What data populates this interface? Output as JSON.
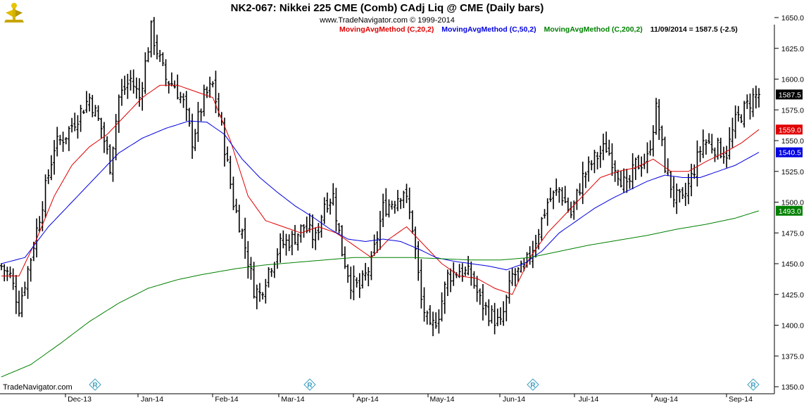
{
  "header": {
    "title": "NK2-067:  Nikkei 225 CME (Comb) CAdj Liq @ CME  (Daily bars)",
    "subtitle": "www.TradeNavigator.com © 1999-2014",
    "legend": [
      {
        "label": "MovingAvgMethod (C,20,2)",
        "color": "#e00000"
      },
      {
        "label": "MovingAvgMethod (C,50,2)",
        "color": "#0000e0"
      },
      {
        "label": "MovingAvgMethod (C,200,2)",
        "color": "#008000"
      }
    ],
    "last_quote": "11/09/2014 = 1587.5 (-2.5)"
  },
  "footer": {
    "brand": "TradeNavigator.com"
  },
  "chart_data": {
    "type": "ohlc",
    "title": "NK2-067:  Nikkei 225 CME (Comb) CAdj Liq @ CME  (Daily bars)",
    "y_axis": {
      "min": 1350,
      "max": 1650,
      "ticks": [
        1650.0,
        1625.0,
        1600.0,
        1575.0,
        1550.0,
        1525.0,
        1500.0,
        1475.0,
        1450.0,
        1425.0,
        1400.0,
        1375.0,
        1350.0
      ],
      "position": "right"
    },
    "x_axis": {
      "labels": [
        "Dec-13",
        "Jan-14",
        "Feb-14",
        "Mar-14",
        "Apr-14",
        "May-14",
        "Jun-14",
        "Jul-14",
        "Aug-14",
        "Sep-14"
      ]
    },
    "price_path": [
      [
        0,
        1448
      ],
      [
        3,
        1440
      ],
      [
        6,
        1415
      ],
      [
        10,
        1455
      ],
      [
        14,
        1500
      ],
      [
        18,
        1545
      ],
      [
        22,
        1555
      ],
      [
        26,
        1570
      ],
      [
        30,
        1585
      ],
      [
        34,
        1560
      ],
      [
        37,
        1530
      ],
      [
        40,
        1585
      ],
      [
        44,
        1600
      ],
      [
        47,
        1585
      ],
      [
        51,
        1640
      ],
      [
        54,
        1615
      ],
      [
        56,
        1600
      ],
      [
        59,
        1595
      ],
      [
        62,
        1580
      ],
      [
        65,
        1550
      ],
      [
        69,
        1585
      ],
      [
        72,
        1595
      ],
      [
        75,
        1560
      ],
      [
        79,
        1500
      ],
      [
        82,
        1475
      ],
      [
        86,
        1430
      ],
      [
        88,
        1425
      ],
      [
        91,
        1445
      ],
      [
        95,
        1465
      ],
      [
        99,
        1470
      ],
      [
        103,
        1480
      ],
      [
        107,
        1470
      ],
      [
        110,
        1500
      ],
      [
        113,
        1505
      ],
      [
        116,
        1460
      ],
      [
        119,
        1435
      ],
      [
        122,
        1430
      ],
      [
        126,
        1450
      ],
      [
        130,
        1495
      ],
      [
        133,
        1500
      ],
      [
        137,
        1510
      ],
      [
        140,
        1480
      ],
      [
        143,
        1420
      ],
      [
        146,
        1395
      ],
      [
        149,
        1410
      ],
      [
        152,
        1440
      ],
      [
        156,
        1445
      ],
      [
        160,
        1440
      ],
      [
        163,
        1420
      ],
      [
        166,
        1410
      ],
      [
        170,
        1400
      ],
      [
        174,
        1440
      ],
      [
        178,
        1445
      ],
      [
        182,
        1470
      ],
      [
        186,
        1500
      ],
      [
        190,
        1510
      ],
      [
        194,
        1490
      ],
      [
        198,
        1520
      ],
      [
        202,
        1535
      ],
      [
        206,
        1545
      ],
      [
        210,
        1525
      ],
      [
        213,
        1510
      ],
      [
        216,
        1530
      ],
      [
        220,
        1535
      ],
      [
        223,
        1575
      ],
      [
        226,
        1530
      ],
      [
        229,
        1505
      ],
      [
        232,
        1500
      ],
      [
        235,
        1520
      ],
      [
        239,
        1550
      ],
      [
        243,
        1545
      ],
      [
        247,
        1540
      ],
      [
        250,
        1565
      ],
      [
        253,
        1575
      ],
      [
        256,
        1585
      ],
      [
        258,
        1587.5
      ]
    ],
    "series": [
      {
        "name": "MovingAvgMethod (C,20,2)",
        "color": "#e00000",
        "last": 1559.0,
        "points": [
          [
            0,
            1440
          ],
          [
            6,
            1440
          ],
          [
            12,
            1470
          ],
          [
            18,
            1505
          ],
          [
            24,
            1530
          ],
          [
            30,
            1545
          ],
          [
            36,
            1555
          ],
          [
            42,
            1570
          ],
          [
            48,
            1585
          ],
          [
            54,
            1595
          ],
          [
            60,
            1595
          ],
          [
            66,
            1590
          ],
          [
            72,
            1585
          ],
          [
            78,
            1550
          ],
          [
            84,
            1505
          ],
          [
            90,
            1485
          ],
          [
            96,
            1480
          ],
          [
            102,
            1475
          ],
          [
            108,
            1480
          ],
          [
            114,
            1475
          ],
          [
            120,
            1465
          ],
          [
            126,
            1455
          ],
          [
            132,
            1470
          ],
          [
            138,
            1480
          ],
          [
            144,
            1465
          ],
          [
            150,
            1450
          ],
          [
            156,
            1440
          ],
          [
            162,
            1438
          ],
          [
            168,
            1430
          ],
          [
            174,
            1425
          ],
          [
            180,
            1455
          ],
          [
            186,
            1475
          ],
          [
            192,
            1490
          ],
          [
            198,
            1505
          ],
          [
            204,
            1520
          ],
          [
            210,
            1525
          ],
          [
            216,
            1528
          ],
          [
            222,
            1535
          ],
          [
            228,
            1525
          ],
          [
            234,
            1525
          ],
          [
            240,
            1533
          ],
          [
            246,
            1540
          ],
          [
            252,
            1548
          ],
          [
            258,
            1559
          ]
        ]
      },
      {
        "name": "MovingAvgMethod (C,50,2)",
        "color": "#0000e0",
        "last": 1540.5,
        "points": [
          [
            0,
            1450
          ],
          [
            8,
            1455
          ],
          [
            16,
            1480
          ],
          [
            24,
            1500
          ],
          [
            32,
            1520
          ],
          [
            40,
            1540
          ],
          [
            48,
            1552
          ],
          [
            56,
            1560
          ],
          [
            64,
            1566
          ],
          [
            70,
            1565
          ],
          [
            76,
            1555
          ],
          [
            82,
            1535
          ],
          [
            88,
            1520
          ],
          [
            94,
            1508
          ],
          [
            100,
            1497
          ],
          [
            106,
            1488
          ],
          [
            112,
            1478
          ],
          [
            118,
            1470
          ],
          [
            124,
            1468
          ],
          [
            130,
            1470
          ],
          [
            136,
            1468
          ],
          [
            142,
            1462
          ],
          [
            148,
            1455
          ],
          [
            154,
            1452
          ],
          [
            160,
            1450
          ],
          [
            166,
            1448
          ],
          [
            172,
            1445
          ],
          [
            178,
            1450
          ],
          [
            184,
            1460
          ],
          [
            190,
            1475
          ],
          [
            196,
            1485
          ],
          [
            202,
            1495
          ],
          [
            208,
            1503
          ],
          [
            214,
            1510
          ],
          [
            220,
            1517
          ],
          [
            226,
            1522
          ],
          [
            232,
            1520
          ],
          [
            238,
            1520
          ],
          [
            244,
            1525
          ],
          [
            250,
            1530
          ],
          [
            258,
            1540.5
          ]
        ]
      },
      {
        "name": "MovingAvgMethod (C,200,2)",
        "color": "#008000",
        "last": 1493.0,
        "points": [
          [
            0,
            1358
          ],
          [
            10,
            1368
          ],
          [
            20,
            1385
          ],
          [
            30,
            1403
          ],
          [
            40,
            1418
          ],
          [
            50,
            1430
          ],
          [
            60,
            1437
          ],
          [
            68,
            1441
          ],
          [
            80,
            1446
          ],
          [
            90,
            1449
          ],
          [
            100,
            1451
          ],
          [
            110,
            1453
          ],
          [
            120,
            1455
          ],
          [
            130,
            1455
          ],
          [
            140,
            1455
          ],
          [
            150,
            1454
          ],
          [
            160,
            1453
          ],
          [
            170,
            1453
          ],
          [
            180,
            1455
          ],
          [
            190,
            1460
          ],
          [
            200,
            1465
          ],
          [
            210,
            1469
          ],
          [
            220,
            1473
          ],
          [
            230,
            1478
          ],
          [
            240,
            1482
          ],
          [
            250,
            1487
          ],
          [
            258,
            1493
          ]
        ]
      }
    ],
    "last_price_label": "1587.5",
    "price_label_colors": {
      "last": "#000000",
      "ma20": "#e00000",
      "ma50": "#0000e0",
      "ma200": "#008000"
    }
  }
}
